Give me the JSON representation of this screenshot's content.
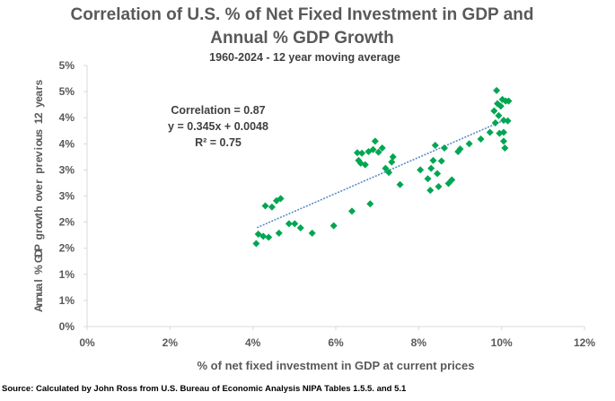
{
  "chart_data": {
    "type": "scatter",
    "title_line1": "Correlation of U.S. % of Net Fixed Investment in GDP and",
    "title_line2": "Annual % GDP Growth",
    "subtitle": "1960-2024 - 12 year moving average",
    "xlabel": "% of net fixed investment in GDP at current prices",
    "ylabel": "Annual % GDP growth over previous 12 years",
    "xlim": [
      0,
      0.12
    ],
    "ylim": [
      0,
      0.05
    ],
    "x_ticks": [
      "0%",
      "2%",
      "4%",
      "6%",
      "8%",
      "10%",
      "12%"
    ],
    "y_ticks": [
      "0%",
      "1%",
      "1%",
      "2%",
      "2%",
      "3%",
      "3%",
      "4%",
      "4%",
      "5%",
      "5%"
    ],
    "grid": false,
    "legend": "none",
    "marker_color": "#00A651",
    "trendline_color": "#5B8BC9",
    "annotation": {
      "correlation": "Correlation = 0.87",
      "equation": "y = 0.345x + 0.0048",
      "r_squared": "R² = 0.75"
    },
    "trendline": {
      "slope": 0.345,
      "intercept": 0.0048,
      "x_range": [
        0.041,
        0.1
      ]
    },
    "points": [
      [
        0.0408,
        0.0159
      ],
      [
        0.0413,
        0.0177
      ],
      [
        0.0425,
        0.0173
      ],
      [
        0.043,
        0.0231
      ],
      [
        0.0438,
        0.0171
      ],
      [
        0.0446,
        0.0229
      ],
      [
        0.0457,
        0.0241
      ],
      [
        0.0463,
        0.0179
      ],
      [
        0.0467,
        0.0245
      ],
      [
        0.0487,
        0.0197
      ],
      [
        0.0501,
        0.0197
      ],
      [
        0.0515,
        0.0189
      ],
      [
        0.0543,
        0.0179
      ],
      [
        0.0595,
        0.0193
      ],
      [
        0.0639,
        0.0221
      ],
      [
        0.0652,
        0.0333
      ],
      [
        0.0655,
        0.0318
      ],
      [
        0.066,
        0.0313
      ],
      [
        0.0663,
        0.0332
      ],
      [
        0.0671,
        0.031
      ],
      [
        0.0679,
        0.0335
      ],
      [
        0.0683,
        0.0235
      ],
      [
        0.069,
        0.0339
      ],
      [
        0.0695,
        0.0355
      ],
      [
        0.0703,
        0.0334
      ],
      [
        0.0712,
        0.0342
      ],
      [
        0.072,
        0.0303
      ],
      [
        0.0728,
        0.0295
      ],
      [
        0.0735,
        0.0315
      ],
      [
        0.0738,
        0.0325
      ],
      [
        0.0755,
        0.0272
      ],
      [
        0.0804,
        0.03
      ],
      [
        0.0822,
        0.0283
      ],
      [
        0.0828,
        0.0261
      ],
      [
        0.083,
        0.0303
      ],
      [
        0.0835,
        0.0318
      ],
      [
        0.084,
        0.0347
      ],
      [
        0.0845,
        0.0293
      ],
      [
        0.0848,
        0.0268
      ],
      [
        0.0855,
        0.0317
      ],
      [
        0.0862,
        0.0342
      ],
      [
        0.0872,
        0.0274
      ],
      [
        0.088,
        0.0281
      ],
      [
        0.0895,
        0.0335
      ],
      [
        0.09,
        0.034
      ],
      [
        0.0922,
        0.035
      ],
      [
        0.095,
        0.0359
      ],
      [
        0.0972,
        0.0372
      ],
      [
        0.0982,
        0.0413
      ],
      [
        0.0985,
        0.039
      ],
      [
        0.0988,
        0.0452
      ],
      [
        0.099,
        0.0427
      ],
      [
        0.0993,
        0.0404
      ],
      [
        0.0995,
        0.037
      ],
      [
        0.0998,
        0.0422
      ],
      [
        0.1002,
        0.0435
      ],
      [
        0.1005,
        0.0395
      ],
      [
        0.1005,
        0.0372
      ],
      [
        0.1005,
        0.0355
      ],
      [
        0.1008,
        0.0342
      ],
      [
        0.101,
        0.0432
      ],
      [
        0.1015,
        0.0394
      ],
      [
        0.1017,
        0.0432
      ]
    ]
  },
  "source": "Source: Calculated by John Ross from U.S. Bureau of Economic Analysis NIPA Tables 1.5.5. and 5.1"
}
